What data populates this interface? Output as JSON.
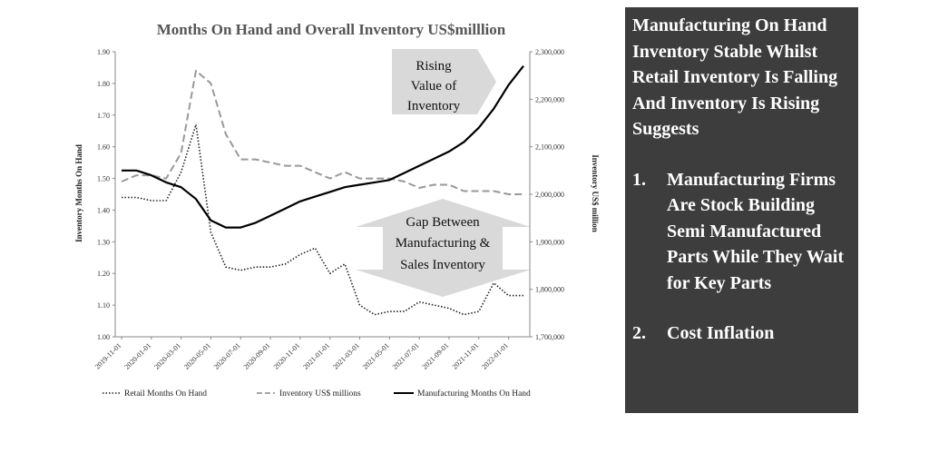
{
  "chart_data": {
    "type": "line",
    "title": "Months On Hand and Overall Inventory US$milllion",
    "left_axis": {
      "label": "Inventory Months On Hand",
      "range": [
        1.0,
        1.9
      ],
      "ticks": [
        "1.00",
        "1.10",
        "1.20",
        "1.30",
        "1.40",
        "1.50",
        "1.60",
        "1.70",
        "1.80",
        "1.90"
      ]
    },
    "right_axis": {
      "label": "Inventory US$ million",
      "range": [
        1700000,
        2300000
      ],
      "ticks": [
        "1,700,000",
        "1,800,000",
        "1,900,000",
        "2,000,000",
        "2,100,000",
        "2,200,000",
        "2,300,000"
      ]
    },
    "x_tick_labels": [
      "2019-11-01",
      "2020-01-01",
      "2020-03-01",
      "2020-05-01",
      "2020-07-01",
      "2020-09-01",
      "2020-11-01",
      "2021-01-01",
      "2021-03-01",
      "2021-05-01",
      "2021-07-01",
      "2021-09-01",
      "2021-11-01",
      "2022-01-01"
    ],
    "x": [
      "2019-11",
      "2019-12",
      "2020-01",
      "2020-02",
      "2020-03",
      "2020-04",
      "2020-05",
      "2020-06",
      "2020-07",
      "2020-08",
      "2020-09",
      "2020-10",
      "2020-11",
      "2020-12",
      "2021-01",
      "2021-02",
      "2021-03",
      "2021-04",
      "2021-05",
      "2021-06",
      "2021-07",
      "2021-08",
      "2021-09",
      "2021-10",
      "2021-11",
      "2021-12",
      "2022-01",
      "2022-02"
    ],
    "series": [
      {
        "name": "Retail Months On Hand",
        "axis": "left",
        "style": "dotted",
        "values": [
          1.44,
          1.44,
          1.43,
          1.43,
          1.52,
          1.67,
          1.33,
          1.22,
          1.21,
          1.22,
          1.22,
          1.23,
          1.26,
          1.28,
          1.2,
          1.23,
          1.1,
          1.07,
          1.08,
          1.08,
          1.11,
          1.1,
          1.09,
          1.07,
          1.08,
          1.17,
          1.13,
          1.13
        ]
      },
      {
        "name": "Inventory US$ millions",
        "axis": "left",
        "style": "dashed",
        "values": [
          1.49,
          1.51,
          1.51,
          1.5,
          1.58,
          1.84,
          1.8,
          1.64,
          1.56,
          1.56,
          1.55,
          1.54,
          1.54,
          1.52,
          1.5,
          1.52,
          1.5,
          1.5,
          1.5,
          1.49,
          1.47,
          1.48,
          1.48,
          1.46,
          1.46,
          1.46,
          1.45,
          1.45
        ]
      },
      {
        "name": "Manufacturing Months On Hand",
        "axis": "right",
        "style": "solid",
        "values": [
          2050000,
          2050000,
          2040000,
          2025000,
          2015000,
          1990000,
          1945000,
          1930000,
          1930000,
          1940000,
          1955000,
          1970000,
          1985000,
          1995000,
          2005000,
          2015000,
          2020000,
          2025000,
          2030000,
          2045000,
          2060000,
          2075000,
          2090000,
          2110000,
          2140000,
          2180000,
          2230000,
          2270000
        ]
      }
    ],
    "legend_position": "bottom",
    "grid": false,
    "annotations": {
      "rising_value": [
        "Rising",
        "Value of",
        "Inventory"
      ],
      "gap": [
        "Gap Between",
        "Manufacturing &",
        "Sales Inventory"
      ]
    },
    "colors": {
      "retail": "#222222",
      "inventory": "#999999",
      "manufacturing": "#000000",
      "arrow": "#d9d9d9"
    }
  },
  "panel": {
    "heading": "Manufacturing On Hand Inventory Stable Whilst Retail Inventory Is Falling And Inventory Is Rising Suggests",
    "items": [
      {
        "num": "1.",
        "text": "Manufacturing Firms Are Stock Building Semi Manufactured Parts While They Wait for Key Parts"
      },
      {
        "num": "2.",
        "text": "Cost Inflation"
      }
    ],
    "background": "#3d3d3d"
  }
}
